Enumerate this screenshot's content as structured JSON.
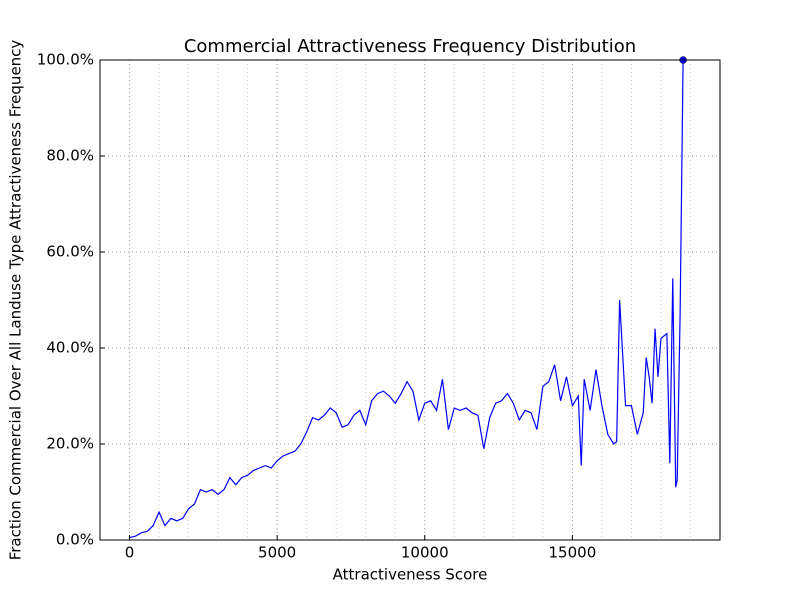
{
  "chart_data": {
    "type": "line",
    "title": "Commercial Attractiveness Frequency Distribution",
    "xlabel": "Attractiveness Score",
    "ylabel": "Fraction Commercial Over All Landuse Type Attractiveness Frequency",
    "x": [
      0,
      200,
      400,
      600,
      800,
      1000,
      1200,
      1400,
      1600,
      1800,
      2000,
      2200,
      2400,
      2600,
      2800,
      3000,
      3200,
      3400,
      3600,
      3800,
      4000,
      4200,
      4400,
      4600,
      4800,
      5000,
      5200,
      5400,
      5600,
      5800,
      6000,
      6200,
      6400,
      6600,
      6800,
      7000,
      7200,
      7400,
      7600,
      7800,
      8000,
      8200,
      8400,
      8600,
      8800,
      9000,
      9200,
      9400,
      9600,
      9800,
      10000,
      10200,
      10400,
      10600,
      10800,
      11000,
      11200,
      11400,
      11600,
      11800,
      12000,
      12200,
      12400,
      12600,
      12800,
      13000,
      13200,
      13400,
      13600,
      13800,
      14000,
      14200,
      14400,
      14600,
      14800,
      15000,
      15200,
      15300,
      15400,
      15600,
      15800,
      16000,
      16200,
      16400,
      16500,
      16600,
      16800,
      17000,
      17200,
      17400,
      17500,
      17600,
      17700,
      17800,
      17900,
      18000,
      18200,
      18300,
      18400,
      18500,
      18550,
      18650,
      18750
    ],
    "series": [
      {
        "name": "Commercial",
        "color": "#0000ff",
        "values": [
          0.5,
          0.8,
          1.5,
          1.8,
          3,
          5.8,
          3,
          4.5,
          4,
          4.5,
          6.5,
          7.5,
          10.5,
          10,
          10.5,
          9.5,
          10.5,
          13,
          11.5,
          13,
          13.5,
          14.5,
          15,
          15.5,
          15,
          16.5,
          17.5,
          18,
          18.5,
          20,
          22.5,
          25.5,
          25,
          26,
          27.5,
          26.5,
          23.5,
          24,
          26,
          27,
          24,
          29,
          30.5,
          31,
          30,
          28.5,
          30.5,
          33,
          31,
          25,
          28.5,
          29,
          27,
          33.5,
          23,
          27.5,
          27,
          27.5,
          26.5,
          26,
          19,
          25.5,
          28.5,
          29,
          30.5,
          28.5,
          25,
          27,
          26.5,
          23,
          32,
          33,
          36.5,
          29,
          34,
          28,
          30,
          15.5,
          33.5,
          27,
          35.5,
          28,
          22,
          20,
          20.5,
          50,
          28,
          28,
          22,
          26.5,
          38,
          34,
          28.5,
          44,
          34,
          42,
          43,
          16,
          54.5,
          11,
          12.5,
          47.5,
          100
        ]
      }
    ],
    "end_marker": true,
    "xlim": [
      -1000,
      20000
    ],
    "xticks": [
      0,
      5000,
      10000,
      15000
    ],
    "xminorticks": [
      1000,
      2000,
      3000,
      4000,
      6000,
      7000,
      8000,
      9000,
      11000,
      12000,
      13000,
      14000,
      16000,
      17000,
      18000,
      19000
    ],
    "ylim": [
      0,
      100
    ],
    "yticks": [
      {
        "value": 0,
        "label": "0.0%"
      },
      {
        "value": 20,
        "label": "20.0%"
      },
      {
        "value": 40,
        "label": "40.0%"
      },
      {
        "value": 60,
        "label": "60.0%"
      },
      {
        "value": 80,
        "label": "80.0%"
      },
      {
        "value": 100,
        "label": "100.0%"
      }
    ],
    "grid": true
  }
}
